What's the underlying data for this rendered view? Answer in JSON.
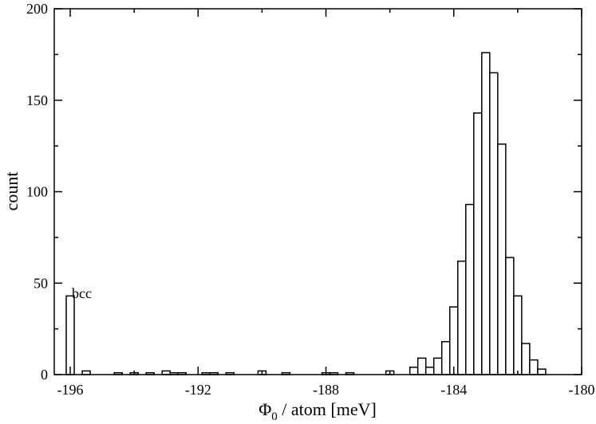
{
  "chart_data": {
    "type": "bar",
    "style": "histogram-outline",
    "x_range": [
      -196.5,
      -180
    ],
    "ylim": [
      0,
      200
    ],
    "x_ticks": [
      -196,
      -192,
      -188,
      -184,
      -180
    ],
    "x_tick_labels": [
      "-196",
      "-192",
      "-188",
      "-184",
      "-180"
    ],
    "y_ticks": [
      0,
      50,
      100,
      150,
      200
    ],
    "y_tick_labels": [
      "0",
      "50",
      "100",
      "150",
      "200"
    ],
    "ylabel": "count",
    "xlabel_symbol": "Φ",
    "xlabel_subscript": "0",
    "xlabel_rest": " / atom [meV]",
    "grid": false,
    "legend": "none",
    "bin_width": 0.25,
    "bins": [
      {
        "x": -196.0,
        "count": 43
      },
      {
        "x": -195.5,
        "count": 2
      },
      {
        "x": -194.5,
        "count": 1
      },
      {
        "x": -194.0,
        "count": 1
      },
      {
        "x": -193.5,
        "count": 1
      },
      {
        "x": -193.0,
        "count": 2
      },
      {
        "x": -192.75,
        "count": 1
      },
      {
        "x": -192.5,
        "count": 1
      },
      {
        "x": -191.75,
        "count": 1
      },
      {
        "x": -191.5,
        "count": 1
      },
      {
        "x": -191.0,
        "count": 1
      },
      {
        "x": -190.0,
        "count": 2
      },
      {
        "x": -189.25,
        "count": 1
      },
      {
        "x": -188.0,
        "count": 1
      },
      {
        "x": -187.75,
        "count": 1
      },
      {
        "x": -187.25,
        "count": 1
      },
      {
        "x": -186.0,
        "count": 2
      },
      {
        "x": -185.25,
        "count": 4
      },
      {
        "x": -185.0,
        "count": 9
      },
      {
        "x": -184.75,
        "count": 4
      },
      {
        "x": -184.5,
        "count": 9
      },
      {
        "x": -184.25,
        "count": 18
      },
      {
        "x": -184.0,
        "count": 37
      },
      {
        "x": -183.75,
        "count": 62
      },
      {
        "x": -183.5,
        "count": 93
      },
      {
        "x": -183.25,
        "count": 143
      },
      {
        "x": -183.0,
        "count": 176
      },
      {
        "x": -182.75,
        "count": 165
      },
      {
        "x": -182.5,
        "count": 126
      },
      {
        "x": -182.25,
        "count": 64
      },
      {
        "x": -182.0,
        "count": 43
      },
      {
        "x": -181.75,
        "count": 17
      },
      {
        "x": -181.5,
        "count": 8
      },
      {
        "x": -181.25,
        "count": 3
      }
    ],
    "annotations": [
      {
        "text": "bcc",
        "x": -196.0,
        "y": 40
      }
    ]
  }
}
